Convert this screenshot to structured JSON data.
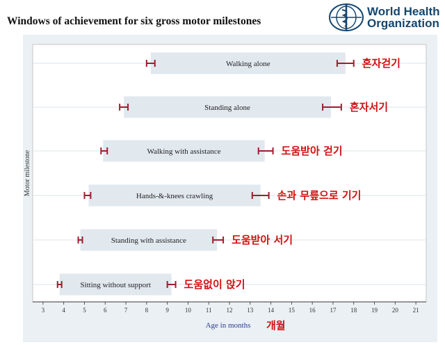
{
  "header": {
    "title": "Windows of achievement for six gross motor milestones",
    "org_line1": "World Health",
    "org_line2": "Organization"
  },
  "chart_data": {
    "type": "bar",
    "subtype": "range",
    "title": "Windows of achievement for six gross motor milestones",
    "xlabel": "Age in months",
    "xlabel_annotation": "개월",
    "ylabel": "Motor milestone",
    "xlim": [
      2.5,
      21.5
    ],
    "xticks": [
      3,
      4,
      5,
      6,
      7,
      8,
      9,
      10,
      11,
      12,
      13,
      14,
      15,
      16,
      17,
      18,
      19,
      20,
      21
    ],
    "grid": true,
    "colors": {
      "bar": "#e1e8ee",
      "ci": "#a01c2e",
      "annotation": "#d01010",
      "axis_title": "#2a3d8f"
    },
    "milestones": [
      {
        "name": "Walking alone",
        "korean": "혼자걷기",
        "start": 8.2,
        "end": 17.6,
        "start_ci": [
          8.0,
          8.4
        ],
        "end_ci": [
          17.2,
          18.0
        ]
      },
      {
        "name": "Standing alone",
        "korean": "혼자서기",
        "start": 6.9,
        "end": 16.9,
        "start_ci": [
          6.7,
          7.1
        ],
        "end_ci": [
          16.5,
          17.4
        ]
      },
      {
        "name": "Walking with assistance",
        "korean": "도움받아 걷기",
        "start": 5.9,
        "end": 13.7,
        "start_ci": [
          5.8,
          6.1
        ],
        "end_ci": [
          13.4,
          14.1
        ]
      },
      {
        "name": "Hands-&-knees crawling",
        "korean": "손과 무릎으로 기기",
        "start": 5.2,
        "end": 13.5,
        "start_ci": [
          5.0,
          5.3
        ],
        "end_ci": [
          13.1,
          13.9
        ]
      },
      {
        "name": "Standing with assistance",
        "korean": "도움받아 서기",
        "start": 4.8,
        "end": 11.4,
        "start_ci": [
          4.7,
          4.9
        ],
        "end_ci": [
          11.2,
          11.7
        ]
      },
      {
        "name": "Sitting without support",
        "korean": "도움없이 앉기",
        "start": 3.8,
        "end": 9.2,
        "start_ci": [
          3.7,
          3.9
        ],
        "end_ci": [
          9.0,
          9.4
        ]
      }
    ]
  }
}
